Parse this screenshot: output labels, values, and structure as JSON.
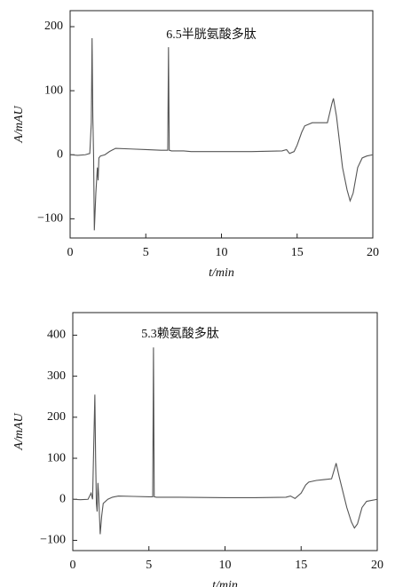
{
  "chart_data": [
    {
      "type": "line",
      "annotation": "6.5半胱氨酸多肽",
      "xlabel": "t/min",
      "ylabel": "A/mAU",
      "xlim": [
        0,
        20
      ],
      "ylim": [
        -130,
        225
      ],
      "xticks": [
        0,
        5,
        10,
        15,
        20
      ],
      "yticks": [
        {
          "value": -100,
          "label": "−100"
        },
        0,
        100,
        200
      ],
      "x": [
        0,
        0.5,
        1.0,
        1.3,
        1.4,
        1.45,
        1.5,
        1.55,
        1.6,
        1.7,
        1.75,
        1.8,
        1.85,
        1.9,
        2.0,
        2.3,
        2.6,
        3.0,
        4.0,
        5.0,
        6.0,
        6.45,
        6.5,
        6.55,
        6.7,
        7.5,
        8,
        10,
        12,
        14,
        14.3,
        14.5,
        14.8,
        15.0,
        15.3,
        15.5,
        16,
        16.5,
        17,
        17.3,
        17.4,
        17.6,
        17.8,
        18.0,
        18.3,
        18.5,
        18.7,
        19,
        19.3,
        19.6,
        20
      ],
      "series": [
        {
          "color": "#555555",
          "values": [
            0,
            -1,
            0,
            2,
            50,
            182,
            60,
            0,
            -118,
            -60,
            -40,
            -20,
            -40,
            -5,
            -2,
            0,
            5,
            10,
            9,
            8,
            7,
            7,
            168,
            7,
            6,
            6,
            5,
            5,
            5,
            6,
            8,
            2,
            5,
            15,
            35,
            45,
            50,
            50,
            50,
            80,
            88,
            60,
            20,
            -20,
            -55,
            -72,
            -60,
            -20,
            -5,
            -2,
            0
          ]
        }
      ]
    },
    {
      "type": "line",
      "annotation": "5.3赖氨酸多肽",
      "xlabel": "t/min",
      "ylabel": "A/mAU",
      "xlim": [
        0,
        20
      ],
      "ylim": [
        -125,
        455
      ],
      "xticks": [
        0,
        5,
        10,
        15,
        20
      ],
      "yticks": [
        {
          "value": -100,
          "label": "−100"
        },
        0,
        100,
        200,
        300,
        400
      ],
      "x": [
        0,
        0.5,
        1.0,
        1.2,
        1.3,
        1.45,
        1.5,
        1.55,
        1.6,
        1.65,
        1.7,
        1.8,
        1.9,
        2.0,
        2.3,
        2.6,
        3.0,
        4,
        5,
        5.25,
        5.3,
        5.35,
        5.5,
        7,
        10,
        12,
        14,
        14.3,
        14.6,
        15,
        15.3,
        15.5,
        16,
        16.5,
        17,
        17.2,
        17.3,
        17.5,
        17.8,
        18,
        18.3,
        18.5,
        18.7,
        19,
        19.3,
        20
      ],
      "series": [
        {
          "color": "#555555",
          "values": [
            0,
            -1,
            0,
            15,
            0,
            255,
            100,
            -10,
            -30,
            40,
            10,
            -85,
            -40,
            -10,
            0,
            5,
            8,
            7,
            6,
            6,
            370,
            6,
            5,
            5,
            4,
            4,
            5,
            8,
            2,
            15,
            35,
            42,
            46,
            48,
            50,
            75,
            88,
            55,
            10,
            -20,
            -55,
            -70,
            -60,
            -20,
            -5,
            0
          ]
        }
      ]
    }
  ]
}
